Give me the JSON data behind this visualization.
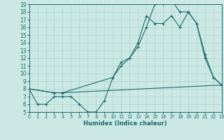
{
  "xlabel": "Humidex (Indice chaleur)",
  "bg_color": "#cce8e4",
  "line_color": "#1a6b6b",
  "grid_color": "#aad4ce",
  "series1_x": [
    0,
    1,
    2,
    3,
    4,
    5,
    6,
    7,
    8,
    9,
    10,
    11,
    12,
    13,
    14,
    15,
    16,
    17,
    18,
    19,
    20,
    21,
    22,
    23
  ],
  "series1_y": [
    8,
    6,
    6,
    7,
    7,
    7,
    6,
    5,
    5,
    6.5,
    9.5,
    11.5,
    12,
    14,
    17.5,
    16.5,
    16.5,
    17.5,
    16,
    18,
    16.5,
    12.5,
    9.5,
    8.5
  ],
  "series2_x": [
    0,
    3,
    4,
    10,
    11,
    12,
    13,
    14,
    15,
    16,
    17,
    18,
    19,
    20,
    21,
    22,
    23
  ],
  "series2_y": [
    8,
    7.5,
    7.5,
    9.5,
    11,
    12,
    13.5,
    16,
    19,
    19,
    19.5,
    18,
    18,
    16.5,
    12,
    9.5,
    8.5
  ],
  "series3_x": [
    0,
    3,
    4,
    23
  ],
  "series3_y": [
    8,
    7.5,
    7.5,
    8.5
  ],
  "xlim": [
    0,
    23
  ],
  "ylim": [
    5,
    19
  ],
  "xticks": [
    0,
    1,
    2,
    3,
    4,
    5,
    6,
    7,
    8,
    9,
    10,
    11,
    12,
    13,
    14,
    15,
    16,
    17,
    18,
    19,
    20,
    21,
    22,
    23
  ],
  "yticks": [
    5,
    6,
    7,
    8,
    9,
    10,
    11,
    12,
    13,
    14,
    15,
    16,
    17,
    18,
    19
  ]
}
